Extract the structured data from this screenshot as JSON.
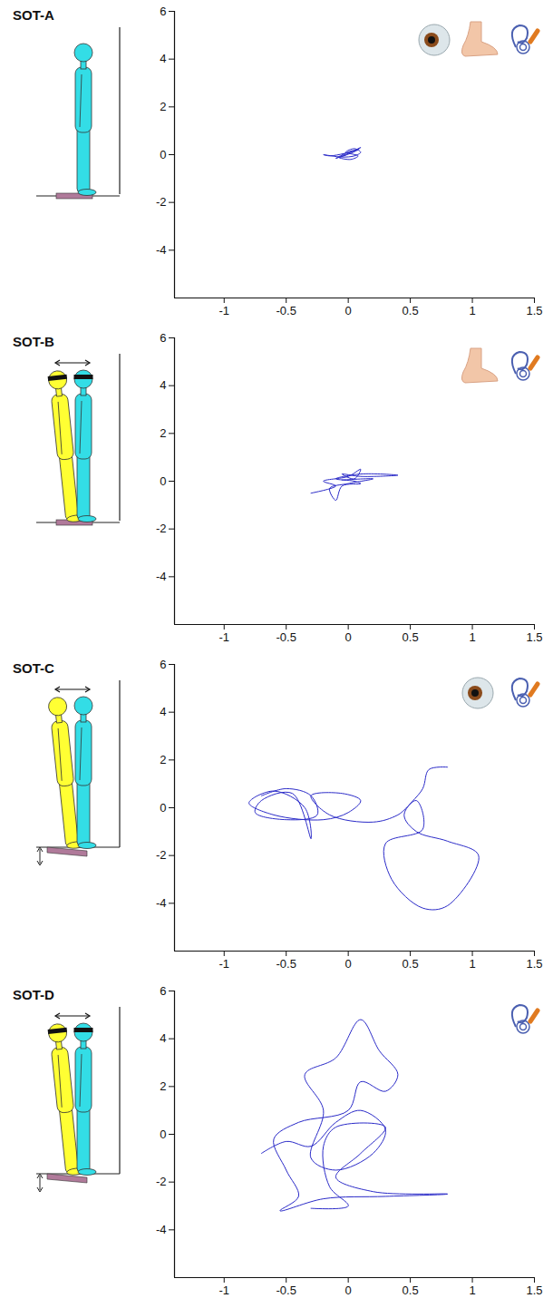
{
  "chart_data": [
    {
      "type": "line",
      "title": "SOT-A",
      "color": "#2a2ac8",
      "x": [
        -0.05,
        0.02,
        0.08,
        -0.03,
        -0.15,
        -0.2,
        -0.05,
        0.05,
        0.1,
        0.05,
        -0.02,
        0.08,
        0.02,
        -0.08,
        0,
        0.1,
        0.04,
        -0.1,
        -0.02
      ],
      "values": [
        0,
        0.15,
        0.2,
        0.05,
        -0.05,
        0,
        -0.1,
        -0.05,
        0.1,
        0.25,
        0.1,
        -0.05,
        -0.2,
        -0.1,
        0.05,
        0.3,
        0.1,
        -0.15,
        -0.02
      ],
      "xlim": [
        -1.4,
        1.5
      ],
      "ylim": [
        -6,
        6
      ],
      "xticks": [
        -1,
        -0.5,
        0,
        0.5,
        1,
        1.5
      ],
      "yticks": [
        -4,
        -2,
        0,
        2,
        4,
        6
      ]
    },
    {
      "type": "line",
      "title": "SOT-B",
      "color": "#2a2ac8",
      "x": [
        -0.3,
        -0.1,
        -0.2,
        0,
        0.1,
        0.05,
        -0.05,
        0.1,
        0.4,
        0.1,
        -0.1,
        0.05,
        0.1,
        -0.05,
        -0.1,
        -0.15,
        0,
        0.2,
        -0.05
      ],
      "values": [
        -0.5,
        -0.2,
        0,
        0.2,
        0.5,
        0.1,
        0.3,
        0.2,
        0.25,
        0.3,
        0.1,
        0,
        -0.1,
        -0.2,
        -0.8,
        -0.3,
        -0.1,
        0.1,
        0.05
      ],
      "xlim": [
        -1.4,
        1.5
      ],
      "ylim": [
        -6,
        6
      ],
      "xticks": [
        -1,
        -0.5,
        0,
        0.5,
        1,
        1.5
      ],
      "yticks": [
        -4,
        -2,
        0,
        2,
        4,
        6
      ]
    },
    {
      "type": "line",
      "title": "SOT-C",
      "color": "#2a2ac8",
      "x": [
        -0.7,
        -0.5,
        -0.3,
        -0.25,
        -0.5,
        -0.75,
        -0.7,
        -0.45,
        -0.3,
        -0.35,
        -0.6,
        -0.8,
        -0.6,
        -0.2,
        0,
        0.1,
        -0.05,
        -0.3,
        -0.15,
        0.2,
        0.4,
        0.55,
        0.6,
        0.3,
        0.35,
        0.6,
        0.8,
        1.05,
        0.8,
        0.55,
        0.45,
        0.6,
        0.65,
        0.8
      ],
      "values": [
        0.5,
        0.8,
        0.5,
        -0.3,
        -0.5,
        -0.2,
        0.3,
        0.6,
        -1.3,
        0,
        0.7,
        0.2,
        -0.3,
        -0.5,
        -0.2,
        0.3,
        0.6,
        0.5,
        -0.3,
        -0.6,
        -0.3,
        0.3,
        -0.9,
        -1.5,
        -3,
        -4.2,
        -4.1,
        -2,
        -1.4,
        -1,
        -0.3,
        0.8,
        1.6,
        1.7
      ],
      "xlim": [
        -1.4,
        1.5
      ],
      "ylim": [
        -6,
        6
      ],
      "xticks": [
        -1,
        -0.5,
        0,
        0.5,
        1,
        1.5
      ],
      "yticks": [
        -4,
        -2,
        0,
        2,
        4,
        6
      ]
    },
    {
      "type": "line",
      "title": "SOT-D",
      "color": "#2a2ac8",
      "x": [
        -0.7,
        -0.5,
        -0.3,
        -0.1,
        0.1,
        0.3,
        0.2,
        -0.1,
        -0.3,
        -0.2,
        -0.35,
        -0.1,
        0.1,
        0.25,
        0.4,
        0.3,
        0.1,
        0,
        -0.4,
        -0.6,
        -0.5,
        -0.4,
        -0.55,
        -0.2,
        0.3,
        0.8,
        0.2,
        -0.1,
        0.1,
        0.3,
        -0.1,
        -0.2,
        -0.15,
        0,
        -0.3
      ],
      "values": [
        -0.8,
        -0.3,
        -0.5,
        0.5,
        1,
        0.2,
        -0.8,
        -1.5,
        -1,
        1,
        2.5,
        3.2,
        4.8,
        3.5,
        2.5,
        1.8,
        2.2,
        1,
        0.5,
        -0.2,
        -1.5,
        -2.6,
        -3.2,
        -2.7,
        -2.6,
        -2.5,
        -2.4,
        -1.8,
        -0.8,
        0.3,
        0.3,
        -0.5,
        -2.2,
        -3,
        -3.1
      ],
      "xlim": [
        -1.4,
        1.5
      ],
      "ylim": [
        -6,
        6
      ],
      "xticks": [
        -1,
        -0.5,
        0,
        0.5,
        1,
        1.5
      ],
      "yticks": [
        -4,
        -2,
        0,
        2,
        4,
        6
      ]
    }
  ]
}
